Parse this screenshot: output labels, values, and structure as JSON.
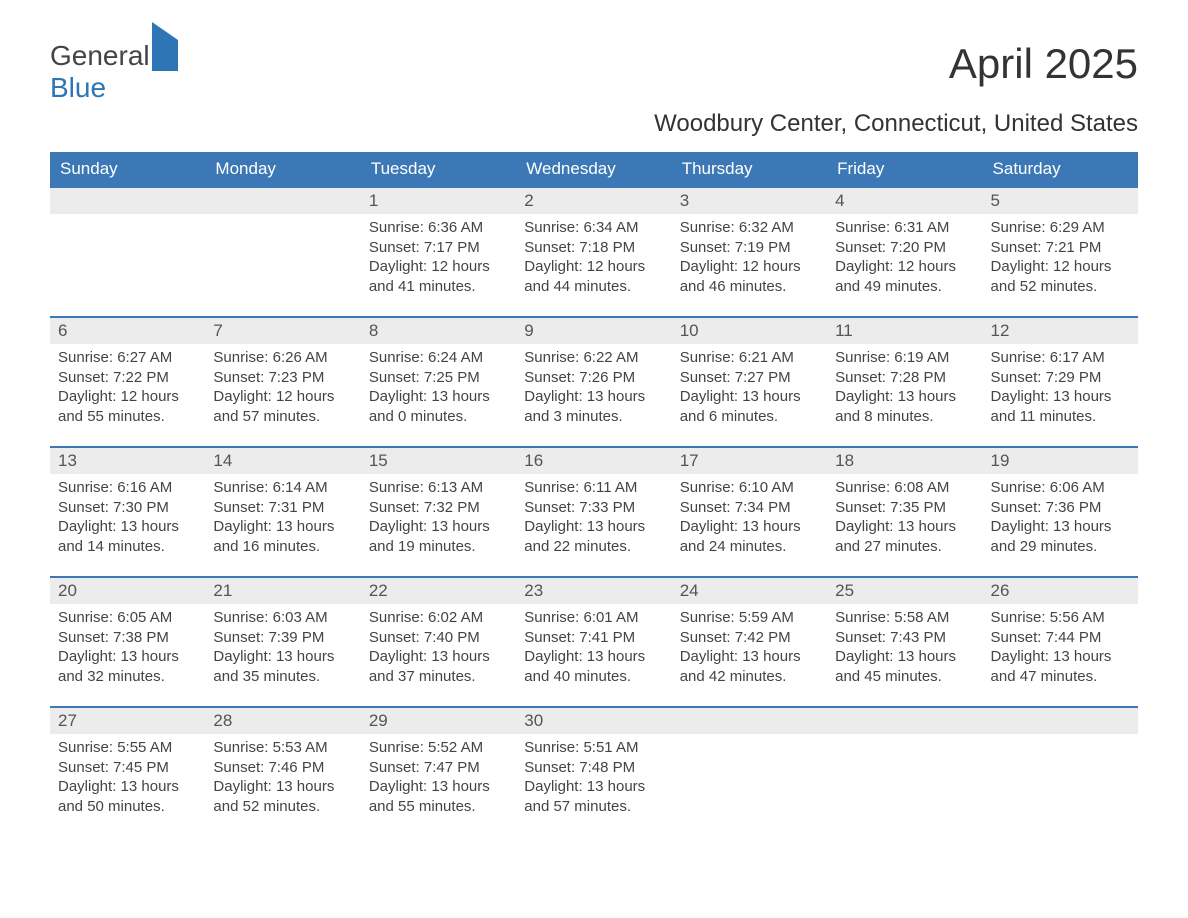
{
  "logo": {
    "part1": "General",
    "part2": "Blue"
  },
  "title": "April 2025",
  "subtitle": "Woodbury Center, Connecticut, United States",
  "colors": {
    "header_bg": "#3b78b5",
    "header_text": "#ffffff",
    "daynum_bg": "#ececec",
    "week_border": "#3b78b5",
    "body_text": "#444444",
    "logo_blue": "#2e75b6"
  },
  "dow": [
    "Sunday",
    "Monday",
    "Tuesday",
    "Wednesday",
    "Thursday",
    "Friday",
    "Saturday"
  ],
  "weeks": [
    [
      null,
      null,
      {
        "n": "1",
        "sunrise": "6:36 AM",
        "sunset": "7:17 PM",
        "day_h": "12",
        "day_m": "41"
      },
      {
        "n": "2",
        "sunrise": "6:34 AM",
        "sunset": "7:18 PM",
        "day_h": "12",
        "day_m": "44"
      },
      {
        "n": "3",
        "sunrise": "6:32 AM",
        "sunset": "7:19 PM",
        "day_h": "12",
        "day_m": "46"
      },
      {
        "n": "4",
        "sunrise": "6:31 AM",
        "sunset": "7:20 PM",
        "day_h": "12",
        "day_m": "49"
      },
      {
        "n": "5",
        "sunrise": "6:29 AM",
        "sunset": "7:21 PM",
        "day_h": "12",
        "day_m": "52"
      }
    ],
    [
      {
        "n": "6",
        "sunrise": "6:27 AM",
        "sunset": "7:22 PM",
        "day_h": "12",
        "day_m": "55"
      },
      {
        "n": "7",
        "sunrise": "6:26 AM",
        "sunset": "7:23 PM",
        "day_h": "12",
        "day_m": "57"
      },
      {
        "n": "8",
        "sunrise": "6:24 AM",
        "sunset": "7:25 PM",
        "day_h": "13",
        "day_m": "0"
      },
      {
        "n": "9",
        "sunrise": "6:22 AM",
        "sunset": "7:26 PM",
        "day_h": "13",
        "day_m": "3"
      },
      {
        "n": "10",
        "sunrise": "6:21 AM",
        "sunset": "7:27 PM",
        "day_h": "13",
        "day_m": "6"
      },
      {
        "n": "11",
        "sunrise": "6:19 AM",
        "sunset": "7:28 PM",
        "day_h": "13",
        "day_m": "8"
      },
      {
        "n": "12",
        "sunrise": "6:17 AM",
        "sunset": "7:29 PM",
        "day_h": "13",
        "day_m": "11"
      }
    ],
    [
      {
        "n": "13",
        "sunrise": "6:16 AM",
        "sunset": "7:30 PM",
        "day_h": "13",
        "day_m": "14"
      },
      {
        "n": "14",
        "sunrise": "6:14 AM",
        "sunset": "7:31 PM",
        "day_h": "13",
        "day_m": "16"
      },
      {
        "n": "15",
        "sunrise": "6:13 AM",
        "sunset": "7:32 PM",
        "day_h": "13",
        "day_m": "19"
      },
      {
        "n": "16",
        "sunrise": "6:11 AM",
        "sunset": "7:33 PM",
        "day_h": "13",
        "day_m": "22"
      },
      {
        "n": "17",
        "sunrise": "6:10 AM",
        "sunset": "7:34 PM",
        "day_h": "13",
        "day_m": "24"
      },
      {
        "n": "18",
        "sunrise": "6:08 AM",
        "sunset": "7:35 PM",
        "day_h": "13",
        "day_m": "27"
      },
      {
        "n": "19",
        "sunrise": "6:06 AM",
        "sunset": "7:36 PM",
        "day_h": "13",
        "day_m": "29"
      }
    ],
    [
      {
        "n": "20",
        "sunrise": "6:05 AM",
        "sunset": "7:38 PM",
        "day_h": "13",
        "day_m": "32"
      },
      {
        "n": "21",
        "sunrise": "6:03 AM",
        "sunset": "7:39 PM",
        "day_h": "13",
        "day_m": "35"
      },
      {
        "n": "22",
        "sunrise": "6:02 AM",
        "sunset": "7:40 PM",
        "day_h": "13",
        "day_m": "37"
      },
      {
        "n": "23",
        "sunrise": "6:01 AM",
        "sunset": "7:41 PM",
        "day_h": "13",
        "day_m": "40"
      },
      {
        "n": "24",
        "sunrise": "5:59 AM",
        "sunset": "7:42 PM",
        "day_h": "13",
        "day_m": "42"
      },
      {
        "n": "25",
        "sunrise": "5:58 AM",
        "sunset": "7:43 PM",
        "day_h": "13",
        "day_m": "45"
      },
      {
        "n": "26",
        "sunrise": "5:56 AM",
        "sunset": "7:44 PM",
        "day_h": "13",
        "day_m": "47"
      }
    ],
    [
      {
        "n": "27",
        "sunrise": "5:55 AM",
        "sunset": "7:45 PM",
        "day_h": "13",
        "day_m": "50"
      },
      {
        "n": "28",
        "sunrise": "5:53 AM",
        "sunset": "7:46 PM",
        "day_h": "13",
        "day_m": "52"
      },
      {
        "n": "29",
        "sunrise": "5:52 AM",
        "sunset": "7:47 PM",
        "day_h": "13",
        "day_m": "55"
      },
      {
        "n": "30",
        "sunrise": "5:51 AM",
        "sunset": "7:48 PM",
        "day_h": "13",
        "day_m": "57"
      },
      null,
      null,
      null
    ]
  ],
  "labels": {
    "sunrise": "Sunrise: ",
    "sunset": "Sunset: ",
    "daylight1": "Daylight: ",
    "daylight2": " hours and ",
    "daylight3": " minutes."
  }
}
